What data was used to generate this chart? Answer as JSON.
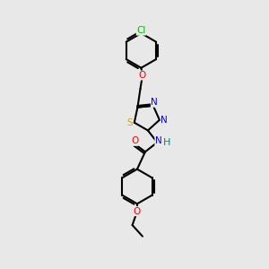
{
  "bg_color": "#e8e8e8",
  "bond_color": "#000000",
  "atom_colors": {
    "Cl": "#00bb00",
    "O": "#ff0000",
    "S": "#ccaa00",
    "N": "#0000ff",
    "C": "#000000",
    "H": "#008888"
  },
  "line_width": 1.5,
  "font_size": 7.5
}
